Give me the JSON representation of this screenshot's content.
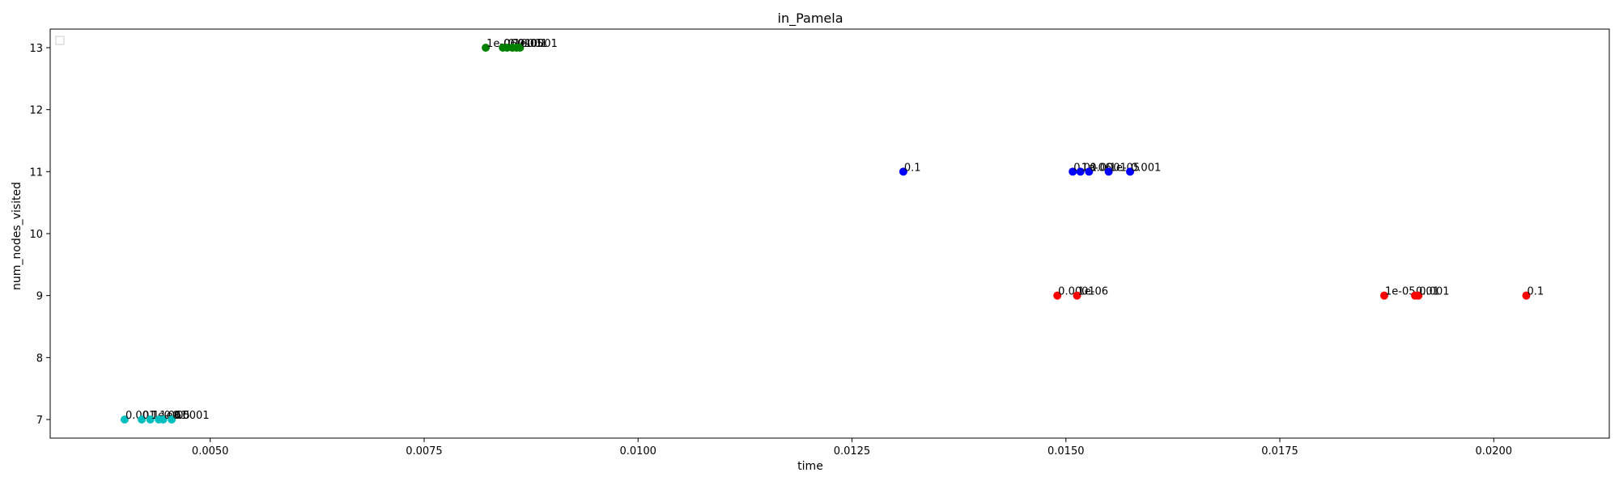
{
  "chart_data": {
    "type": "scatter",
    "title": "in_Pamela",
    "xlabel": "time",
    "ylabel": "num_nodes_visited",
    "xlim": [
      0.00313,
      0.02135
    ],
    "ylim": [
      6.7,
      13.3
    ],
    "x_ticks": [
      "0.0050",
      "0.0075",
      "0.0100",
      "0.0125",
      "0.0150",
      "0.0175",
      "0.0200"
    ],
    "y_ticks": [
      "7",
      "8",
      "9",
      "10",
      "11",
      "12",
      "13"
    ],
    "x_tick_values": [
      0.005,
      0.0075,
      0.01,
      0.0125,
      0.015,
      0.0175,
      0.02
    ],
    "y_tick_values": [
      7,
      8,
      9,
      10,
      11,
      12,
      13
    ],
    "grid": false,
    "legend": {
      "placement": "top-left",
      "entries": []
    },
    "series": [
      {
        "color": "#00bfbf",
        "points": [
          {
            "x": 0.004,
            "y": 7,
            "label": "0.001"
          },
          {
            "x": 0.0042,
            "y": 7,
            "label": "0.1"
          },
          {
            "x": 0.0043,
            "y": 7,
            "label": "1e-06"
          },
          {
            "x": 0.0044,
            "y": 7,
            "label": "1e-05"
          },
          {
            "x": 0.00445,
            "y": 7,
            "label": "0.01"
          },
          {
            "x": 0.00455,
            "y": 7,
            "label": "0.0001"
          }
        ]
      },
      {
        "color": "#008000",
        "points": [
          {
            "x": 0.00822,
            "y": 13,
            "label": "1e-06"
          },
          {
            "x": 0.00842,
            "y": 13,
            "label": "0.1"
          },
          {
            "x": 0.00847,
            "y": 13,
            "label": "0.01"
          },
          {
            "x": 0.00853,
            "y": 13,
            "label": "1e-05"
          },
          {
            "x": 0.00858,
            "y": 13,
            "label": "0.001"
          },
          {
            "x": 0.00862,
            "y": 13,
            "label": "0.0001"
          }
        ]
      },
      {
        "color": "#0000ff",
        "points": [
          {
            "x": 0.0131,
            "y": 11,
            "label": "0.1"
          },
          {
            "x": 0.01508,
            "y": 11,
            "label": "0.01"
          },
          {
            "x": 0.01517,
            "y": 11,
            "label": "1e-06"
          },
          {
            "x": 0.01527,
            "y": 11,
            "label": "0.0001"
          },
          {
            "x": 0.0155,
            "y": 11,
            "label": "1e-05"
          },
          {
            "x": 0.01575,
            "y": 11,
            "label": "0.001"
          }
        ]
      },
      {
        "color": "#ff0000",
        "points": [
          {
            "x": 0.0149,
            "y": 9,
            "label": "0.0001"
          },
          {
            "x": 0.01513,
            "y": 9,
            "label": "1e-06"
          },
          {
            "x": 0.01872,
            "y": 9,
            "label": "1e-05"
          },
          {
            "x": 0.01908,
            "y": 9,
            "label": "0.01"
          },
          {
            "x": 0.01912,
            "y": 9,
            "label": "0.001"
          },
          {
            "x": 0.02038,
            "y": 9,
            "label": "0.1"
          }
        ]
      }
    ]
  }
}
